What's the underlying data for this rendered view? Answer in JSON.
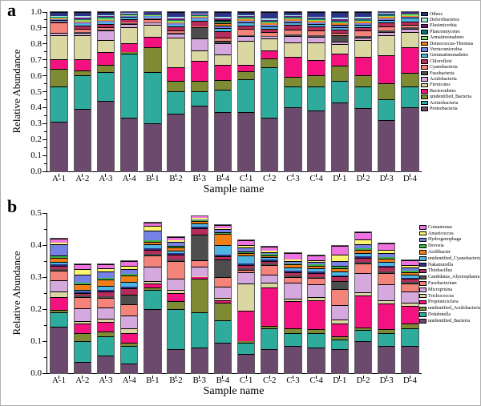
{
  "figure": {
    "panel_a_label": "a",
    "panel_b_label": "b"
  },
  "chart_data": [
    {
      "type": "bar",
      "stacked": true,
      "panel": "a",
      "xlabel": "Sample name",
      "ylabel": "Relative Abundance",
      "ylim": [
        0,
        1.0
      ],
      "yticks": [
        0.0,
        0.1,
        0.2,
        0.3,
        0.4,
        0.5,
        0.6,
        0.7,
        0.8,
        0.9,
        1.0
      ],
      "ytick_labels": [
        "0.0",
        "0.1",
        "0.2",
        "0.3",
        "0.4",
        "0.5",
        "0.6",
        "0.7",
        "0.8",
        "0.9",
        "1.0"
      ],
      "legend_position": "right",
      "grid": false,
      "categories": [
        "A-1",
        "A-2",
        "A-3",
        "A-4",
        "B-1",
        "B-2",
        "B-3",
        "B-4",
        "C-1",
        "C-2",
        "C-3",
        "C-4",
        "D-1",
        "D-2",
        "D-3",
        "D-4"
      ],
      "series": [
        {
          "name": "Proteobacteria",
          "color": "#6B4A6E",
          "values": [
            0.31,
            0.39,
            0.44,
            0.335,
            0.3,
            0.36,
            0.41,
            0.37,
            0.37,
            0.335,
            0.4,
            0.38,
            0.43,
            0.395,
            0.32,
            0.4
          ]
        },
        {
          "name": "Actinobacteria",
          "color": "#2EAB9C",
          "values": [
            0.22,
            0.21,
            0.185,
            0.405,
            0.32,
            0.14,
            0.09,
            0.14,
            0.205,
            0.32,
            0.13,
            0.15,
            0.135,
            0.135,
            0.13,
            0.13
          ]
        },
        {
          "name": "unidentified_Bacteria",
          "color": "#7F8B33",
          "values": [
            0.11,
            0.03,
            0.045,
            0.01,
            0.16,
            0.065,
            0.065,
            0.06,
            0.055,
            0.055,
            0.06,
            0.07,
            0.1,
            0.07,
            0.1,
            0.085
          ]
        },
        {
          "name": "Bacteroidetes",
          "color": "#F3127F",
          "values": [
            0.065,
            0.075,
            0.08,
            0.055,
            0.065,
            0.09,
            0.13,
            0.1,
            0.04,
            0.05,
            0.13,
            0.1,
            0.075,
            0.12,
            0.18,
            0.165
          ]
        },
        {
          "name": "Firmicutes",
          "color": "#DBD7A3",
          "values": [
            0.15,
            0.15,
            0.075,
            0.1,
            0.075,
            0.185,
            0.065,
            0.065,
            0.15,
            0.075,
            0.09,
            0.11,
            0.06,
            0.105,
            0.125,
            0.095
          ]
        },
        {
          "name": "Acidobacteria",
          "color": "#D6A9DE",
          "values": [
            0.012,
            0.015,
            0.06,
            0.02,
            0.008,
            0.025,
            0.075,
            0.07,
            0.03,
            0.01,
            0.04,
            0.035,
            0.015,
            0.015,
            0.02,
            0.02
          ]
        },
        {
          "name": "Fusobacteria",
          "color": "#4D4D4D",
          "values": [
            0.002,
            0.005,
            0.005,
            0.003,
            0.004,
            0.005,
            0.07,
            0.015,
            0.005,
            0.005,
            0.01,
            0.01,
            0.04,
            0.01,
            0.01,
            0.008
          ]
        },
        {
          "name": "Cyanobacteria",
          "color": "#F4837A",
          "values": [
            0.065,
            0.02,
            0.012,
            0.008,
            0.02,
            0.015,
            0.005,
            0.02,
            0.04,
            0.025,
            0.03,
            0.03,
            0.015,
            0.035,
            0.025,
            0.015
          ]
        },
        {
          "name": "Chloroflexi",
          "color": "#B62D5B",
          "values": [
            0.003,
            0.02,
            0.022,
            0.02,
            0.008,
            0.025,
            0.035,
            0.04,
            0.02,
            0.02,
            0.03,
            0.025,
            0.02,
            0.02,
            0.025,
            0.02
          ]
        },
        {
          "name": "Gemmatimonadetes",
          "color": "#4FB6E3",
          "values": [
            0.012,
            0.008,
            0.01,
            0.012,
            0.008,
            0.01,
            0.01,
            0.02,
            0.02,
            0.015,
            0.015,
            0.015,
            0.015,
            0.015,
            0.015,
            0.025
          ]
        },
        {
          "name": "Verrucomicrobia",
          "color": "#7681E6",
          "values": [
            0.006,
            0.01,
            0.01,
            0.005,
            0.005,
            0.008,
            0.008,
            0.015,
            0.01,
            0.01,
            0.01,
            0.01,
            0.012,
            0.01,
            0.01,
            0.008
          ]
        },
        {
          "name": "Deinococcus-Thermus",
          "color": "#F07F18",
          "values": [
            0.004,
            0.008,
            0.008,
            0.004,
            0.004,
            0.008,
            0.006,
            0.012,
            0.008,
            0.008,
            0.008,
            0.008,
            0.01,
            0.008,
            0.008,
            0.006
          ]
        },
        {
          "name": "Armatimonadetes",
          "color": "#8BE25A",
          "values": [
            0.004,
            0.008,
            0.008,
            0.004,
            0.004,
            0.008,
            0.006,
            0.012,
            0.008,
            0.008,
            0.008,
            0.008,
            0.01,
            0.008,
            0.008,
            0.006
          ]
        },
        {
          "name": "Planctomycetes",
          "color": "#057672",
          "values": [
            0.005,
            0.008,
            0.008,
            0.004,
            0.004,
            0.008,
            0.006,
            0.012,
            0.008,
            0.008,
            0.008,
            0.008,
            0.01,
            0.008,
            0.008,
            0.006
          ]
        },
        {
          "name": "Elusimicrobia",
          "color": "#7C1379",
          "values": [
            0.004,
            0.008,
            0.006,
            0.004,
            0.003,
            0.008,
            0.004,
            0.01,
            0.006,
            0.008,
            0.006,
            0.006,
            0.008,
            0.008,
            0.006,
            0.004
          ]
        },
        {
          "name": "Deferribacteres",
          "color": "#A9E7E3",
          "values": [
            0.004,
            0.008,
            0.006,
            0.004,
            0.003,
            0.008,
            0.004,
            0.01,
            0.006,
            0.008,
            0.006,
            0.006,
            0.008,
            0.008,
            0.006,
            0.004
          ]
        },
        {
          "name": "Others",
          "color": "#2C3387",
          "values": [
            0.024,
            0.027,
            0.02,
            0.007,
            0.009,
            0.032,
            0.011,
            0.029,
            0.019,
            0.04,
            0.019,
            0.029,
            0.037,
            0.03,
            0.004,
            0.003
          ]
        }
      ]
    },
    {
      "type": "bar",
      "stacked": true,
      "panel": "b",
      "xlabel": "Sample name",
      "ylabel": "Relative Abundance",
      "ylim": [
        0,
        0.5
      ],
      "yticks": [
        0.0,
        0.1,
        0.2,
        0.3,
        0.4,
        0.5
      ],
      "ytick_labels": [
        "0.0",
        "0.1",
        "0.2",
        "0.3",
        "0.4",
        "0.5"
      ],
      "legend_position": "right",
      "grid": false,
      "categories": [
        "A-1",
        "A-2",
        "A-3",
        "A-4",
        "B-1",
        "B-2",
        "B-3",
        "B-4",
        "C-1",
        "C-2",
        "C-3",
        "C-4",
        "D-1",
        "D-2",
        "D-3",
        "D-4"
      ],
      "series": [
        {
          "name": "unidentified_Bacteria",
          "color": "#6B4A6E",
          "values": [
            0.145,
            0.035,
            0.055,
            0.03,
            0.2,
            0.075,
            0.08,
            0.095,
            0.06,
            0.075,
            0.085,
            0.08,
            0.075,
            0.1,
            0.085,
            0.085
          ]
        },
        {
          "name": "Dokdonella",
          "color": "#2EAB9C",
          "values": [
            0.045,
            0.065,
            0.06,
            0.055,
            0.06,
            0.125,
            0.11,
            0.07,
            0.035,
            0.065,
            0.04,
            0.045,
            0.03,
            0.035,
            0.04,
            0.055
          ]
        },
        {
          "name": "unidentified_Acidobacteria",
          "color": "#7F8B33",
          "values": [
            0.008,
            0.025,
            0.015,
            0.01,
            0.008,
            0.025,
            0.105,
            0.055,
            0.005,
            0.008,
            0.015,
            0.012,
            0.01,
            0.008,
            0.012,
            0.015
          ]
        },
        {
          "name": "Propioniciclava",
          "color": "#F3127F",
          "values": [
            0.04,
            0.03,
            0.03,
            0.03,
            0.012,
            0.025,
            0.004,
            0.008,
            0.095,
            0.12,
            0.085,
            0.09,
            0.04,
            0.1,
            0.08,
            0.055
          ]
        },
        {
          "name": "Trichococcus",
          "color": "#DBD7A3",
          "values": [
            0.018,
            0.008,
            0.01,
            0.015,
            0.008,
            0.01,
            0.004,
            0.006,
            0.085,
            0.015,
            0.008,
            0.01,
            0.012,
            0.01,
            0.01,
            0.01
          ]
        },
        {
          "name": "Micropruina",
          "color": "#D6A9DE",
          "values": [
            0.035,
            0.04,
            0.035,
            0.04,
            0.045,
            0.035,
            0.03,
            0.035,
            0.035,
            0.025,
            0.05,
            0.04,
            0.045,
            0.06,
            0.05,
            0.035
          ]
        },
        {
          "name": "Fusobacterium",
          "color": "#F4837A",
          "values": [
            0.028,
            0.035,
            0.03,
            0.035,
            0.035,
            0.055,
            0.02,
            0.03,
            0.008,
            0.03,
            0.018,
            0.02,
            0.05,
            0.03,
            0.035,
            0.025
          ]
        },
        {
          "name": "Candidatus_Alysiosphaera",
          "color": "#4D4D4D",
          "values": [
            0.005,
            0.004,
            0.005,
            0.03,
            0.005,
            0.005,
            0.08,
            0.055,
            0.005,
            0.004,
            0.004,
            0.004,
            0.025,
            0.005,
            0.005,
            0.004
          ]
        },
        {
          "name": "Thiobacillus",
          "color": "#B62D5B",
          "values": [
            0.01,
            0.008,
            0.015,
            0.02,
            0.012,
            0.015,
            0.02,
            0.012,
            0.01,
            0.008,
            0.01,
            0.012,
            0.015,
            0.012,
            0.015,
            0.01
          ]
        },
        {
          "name": "Nakamurella",
          "color": "#2C3387",
          "values": [
            0.005,
            0.004,
            0.005,
            0.005,
            0.005,
            0.004,
            0.004,
            0.004,
            0.004,
            0.004,
            0.004,
            0.004,
            0.004,
            0.004,
            0.004,
            0.004
          ]
        },
        {
          "name": "unidentified_Cyanobacteria",
          "color": "#4FB6E3",
          "values": [
            0.008,
            0.006,
            0.012,
            0.015,
            0.012,
            0.008,
            0.01,
            0.03,
            0.025,
            0.008,
            0.012,
            0.01,
            0.012,
            0.012,
            0.012,
            0.01
          ]
        },
        {
          "name": "Acidibacter",
          "color": "#F07F18",
          "values": [
            0.012,
            0.018,
            0.02,
            0.02,
            0.008,
            0.01,
            0.008,
            0.035,
            0.008,
            0.006,
            0.008,
            0.008,
            0.01,
            0.01,
            0.01,
            0.008
          ]
        },
        {
          "name": "Devosia",
          "color": "#3DB44B",
          "values": [
            0.008,
            0.004,
            0.005,
            0.005,
            0.005,
            0.006,
            0.002,
            0.006,
            0.006,
            0.004,
            0.004,
            0.004,
            0.006,
            0.005,
            0.005,
            0.004
          ]
        },
        {
          "name": "Hydrogenophaga",
          "color": "#7681E6",
          "values": [
            0.035,
            0.025,
            0.02,
            0.015,
            0.03,
            0.012,
            0.004,
            0.008,
            0.012,
            0.006,
            0.008,
            0.008,
            0.015,
            0.012,
            0.012,
            0.01
          ]
        },
        {
          "name": "Amaricoccus",
          "color": "#FBF672",
          "values": [
            0.005,
            0.018,
            0.01,
            0.01,
            0.015,
            0.005,
            0.004,
            0.004,
            0.008,
            0.004,
            0.004,
            0.006,
            0.02,
            0.015,
            0.01,
            0.008
          ]
        },
        {
          "name": "Comamonas",
          "color": "#EE72DF",
          "values": [
            0.014,
            0.015,
            0.013,
            0.015,
            0.01,
            0.01,
            0.005,
            0.01,
            0.015,
            0.012,
            0.02,
            0.015,
            0.028,
            0.022,
            0.02,
            0.015
          ]
        }
      ]
    }
  ]
}
